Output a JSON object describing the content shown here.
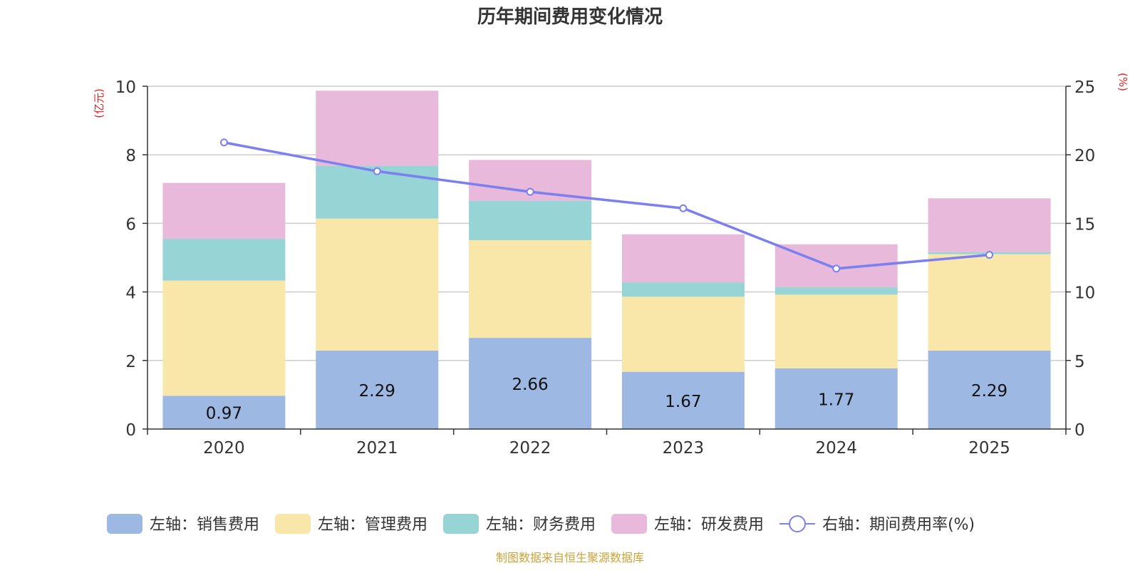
{
  "chart_data": {
    "type": "stacked-bar+line",
    "title": "历年期间费用变化情况",
    "categories": [
      "2020",
      "2021",
      "2022",
      "2023",
      "2024",
      "2025"
    ],
    "left_axis": {
      "unit_label": "(亿元)",
      "ylim": [
        0,
        10
      ],
      "ticks": [
        0,
        2,
        4,
        6,
        8,
        10
      ]
    },
    "right_axis": {
      "unit_label": "(%)",
      "ylim": [
        0,
        25
      ],
      "ticks": [
        0,
        5,
        10,
        15,
        20,
        25
      ]
    },
    "series": [
      {
        "name": "左轴：销售费用",
        "axis": "left",
        "kind": "bar",
        "color": "#9db8e2",
        "values": [
          0.97,
          2.29,
          2.66,
          1.67,
          1.77,
          2.29
        ],
        "show_labels": true
      },
      {
        "name": "左轴：管理费用",
        "axis": "left",
        "kind": "bar",
        "color": "#f8e7a8",
        "values": [
          3.36,
          3.85,
          2.85,
          2.19,
          2.15,
          2.81
        ]
      },
      {
        "name": "左轴：财务费用",
        "axis": "left",
        "kind": "bar",
        "color": "#97d4d5",
        "values": [
          1.22,
          1.54,
          1.15,
          0.42,
          0.22,
          0.06
        ]
      },
      {
        "name": "左轴：研发费用",
        "axis": "left",
        "kind": "bar",
        "color": "#e8b9da",
        "values": [
          1.63,
          2.19,
          1.19,
          1.4,
          1.25,
          1.57
        ]
      },
      {
        "name": "右轴：期间费用率(%)",
        "axis": "right",
        "kind": "line",
        "color": "#7b7ff0",
        "values": [
          20.9,
          18.8,
          17.3,
          16.1,
          11.7,
          12.7
        ]
      }
    ],
    "legend_position": "bottom",
    "grid": true
  },
  "footer": {
    "source_text": "制图数据来自恒生聚源数据库"
  },
  "colors": {
    "axis_unit": "#e02020",
    "footer": "#c9a43a",
    "axis_text": "#333333",
    "grid": "#cccccc"
  }
}
